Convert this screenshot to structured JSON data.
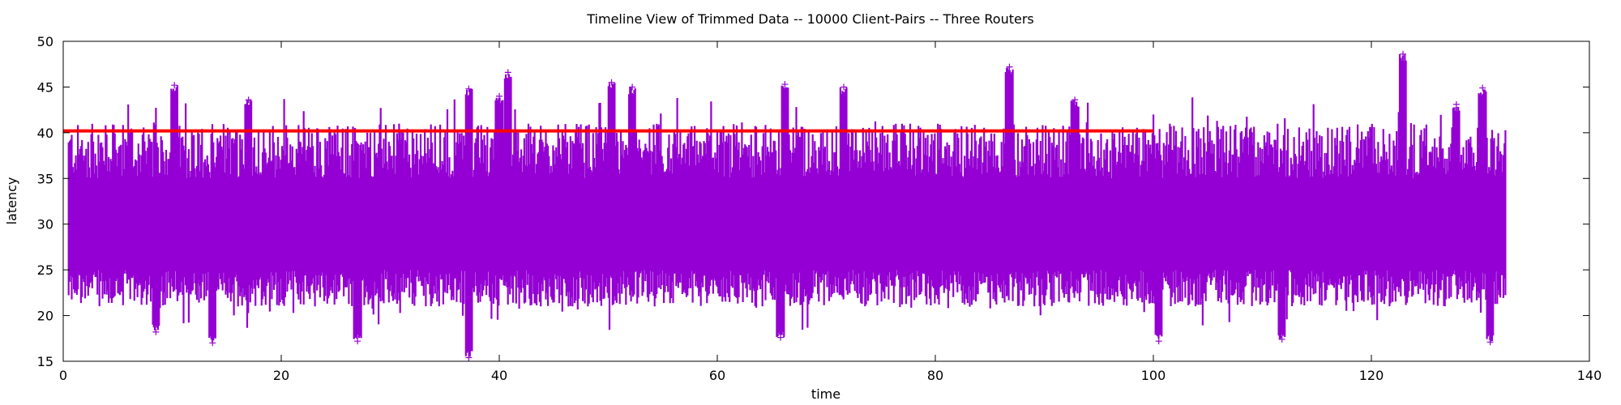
{
  "chart_data": {
    "type": "scatter",
    "title": "Timeline View of Trimmed Data -- 10000 Client-Pairs -- Three Routers",
    "xlabel": "time",
    "ylabel": "latency",
    "xlim": [
      0,
      140
    ],
    "ylim": [
      15,
      50
    ],
    "xticks": [
      0,
      20,
      40,
      60,
      80,
      100,
      120,
      140
    ],
    "yticks": [
      15,
      20,
      25,
      30,
      35,
      40,
      45,
      50
    ],
    "grid": false,
    "legend": "none",
    "series": [
      {
        "marker": "+",
        "color": "#9400d3",
        "x_range": [
          0.5,
          132.3
        ],
        "typical_band": [
          22,
          38
        ],
        "peaks": [
          {
            "x": 10.2,
            "y": 45.2
          },
          {
            "x": 17.0,
            "y": 43.6
          },
          {
            "x": 37.2,
            "y": 44.8
          },
          {
            "x": 40.0,
            "y": 44.0
          },
          {
            "x": 40.8,
            "y": 46.6
          },
          {
            "x": 50.3,
            "y": 45.5
          },
          {
            "x": 52.2,
            "y": 45.0
          },
          {
            "x": 66.2,
            "y": 45.3
          },
          {
            "x": 71.6,
            "y": 45.0
          },
          {
            "x": 86.8,
            "y": 47.2
          },
          {
            "x": 92.8,
            "y": 43.6
          },
          {
            "x": 122.9,
            "y": 48.6
          },
          {
            "x": 127.8,
            "y": 43.1
          },
          {
            "x": 130.2,
            "y": 44.9
          }
        ],
        "troughs": [
          {
            "x": 8.5,
            "y": 18.2
          },
          {
            "x": 13.7,
            "y": 17.0
          },
          {
            "x": 27.0,
            "y": 17.2
          },
          {
            "x": 37.2,
            "y": 15.4
          },
          {
            "x": 65.8,
            "y": 17.6
          },
          {
            "x": 100.5,
            "y": 17.2
          },
          {
            "x": 111.8,
            "y": 17.4
          },
          {
            "x": 130.9,
            "y": 17.1
          }
        ]
      },
      {
        "type": "line",
        "color": "#ff0000",
        "x": [
          0,
          100
        ],
        "values": [
          40.2,
          40.2
        ]
      }
    ]
  }
}
